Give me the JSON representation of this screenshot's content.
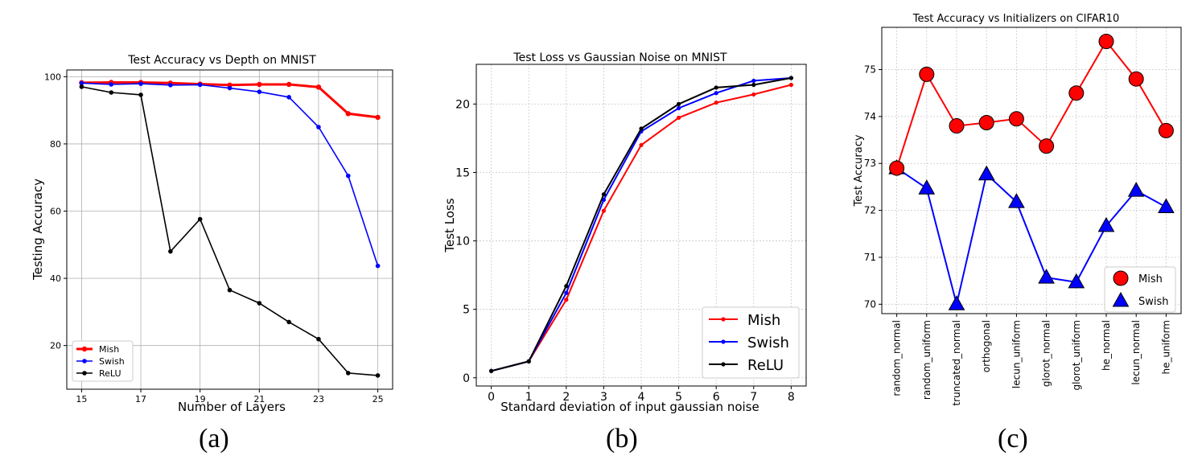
{
  "panel_labels": [
    "(a)",
    "(b)",
    "(c)"
  ],
  "chart_data": [
    {
      "type": "line",
      "title": "Test Accuracy vs Depth on MNIST",
      "xlabel": "Number of Layers",
      "ylabel": "Testing Accuracy",
      "xlim": [
        14.5,
        25.5
      ],
      "ylim": [
        7,
        102
      ],
      "xticks": [
        15,
        17,
        19,
        21,
        23,
        25
      ],
      "yticks": [
        20,
        40,
        60,
        80,
        100
      ],
      "grid": true,
      "legend_position": "lower-left",
      "x": [
        15,
        16,
        17,
        18,
        19,
        20,
        21,
        22,
        23,
        24,
        25
      ],
      "series": [
        {
          "name": "Mish",
          "color": "#ff0000",
          "values": [
            98.2,
            98.3,
            98.3,
            98.1,
            97.8,
            97.5,
            97.7,
            97.7,
            96.9,
            89.0,
            87.9
          ]
        },
        {
          "name": "Swish",
          "color": "#0000ff",
          "values": [
            98.1,
            97.7,
            97.9,
            97.5,
            97.6,
            96.6,
            95.5,
            93.9,
            85.0,
            70.5,
            43.7
          ]
        },
        {
          "name": "ReLU",
          "color": "#000000",
          "values": [
            97.0,
            95.3,
            94.6,
            48.0,
            57.6,
            36.5,
            32.6,
            27.0,
            21.9,
            11.8,
            11.1
          ]
        }
      ]
    },
    {
      "type": "line",
      "title": "Test Loss vs Gaussian Noise on MNIST",
      "xlabel": "Standard deviation of input gaussian noise",
      "ylabel": "Test Loss",
      "xlim": [
        -0.4,
        8.4
      ],
      "ylim": [
        -0.6,
        22.9
      ],
      "xticks": [
        0,
        1,
        2,
        3,
        4,
        5,
        6,
        7,
        8
      ],
      "yticks": [
        0,
        5,
        10,
        15,
        20
      ],
      "grid": true,
      "legend_position": "lower-right",
      "x": [
        0,
        1,
        2,
        3,
        4,
        5,
        6,
        7,
        8
      ],
      "series": [
        {
          "name": "Mish",
          "color": "#ff0000",
          "values": [
            0.5,
            1.2,
            5.7,
            12.2,
            17.0,
            19.0,
            20.1,
            20.7,
            21.4
          ]
        },
        {
          "name": "Swish",
          "color": "#0000ff",
          "values": [
            0.5,
            1.2,
            6.2,
            13.0,
            18.0,
            19.7,
            20.8,
            21.7,
            21.9
          ]
        },
        {
          "name": "ReLU",
          "color": "#000000",
          "values": [
            0.5,
            1.2,
            6.7,
            13.4,
            18.2,
            20.0,
            21.2,
            21.4,
            21.9
          ]
        }
      ]
    },
    {
      "type": "line",
      "title": "Test Accuracy vs Initializers on CIFAR10",
      "xlabel": "",
      "ylabel": "Test Accuracy",
      "ylim": [
        69.8,
        75.9
      ],
      "yticks": [
        70,
        71,
        72,
        73,
        74,
        75
      ],
      "grid": true,
      "legend_position": "lower-right",
      "categories": [
        "random_normal",
        "random_uniform",
        "truncated_normal",
        "orthogonal",
        "lecun_uniform",
        "glorot_normal",
        "glorot_uniform",
        "he_normal",
        "lecun_normal",
        "he_uniform"
      ],
      "series": [
        {
          "name": "Mish",
          "color": "#ff0000",
          "marker": "circle",
          "values": [
            72.9,
            74.9,
            73.8,
            73.87,
            73.95,
            73.37,
            74.5,
            75.6,
            74.8,
            73.7
          ]
        },
        {
          "name": "Swish",
          "color": "#0000ff",
          "marker": "triangle",
          "values": [
            72.9,
            72.47,
            70.0,
            72.77,
            72.18,
            70.57,
            70.47,
            71.67,
            72.42,
            72.07
          ]
        }
      ]
    }
  ]
}
